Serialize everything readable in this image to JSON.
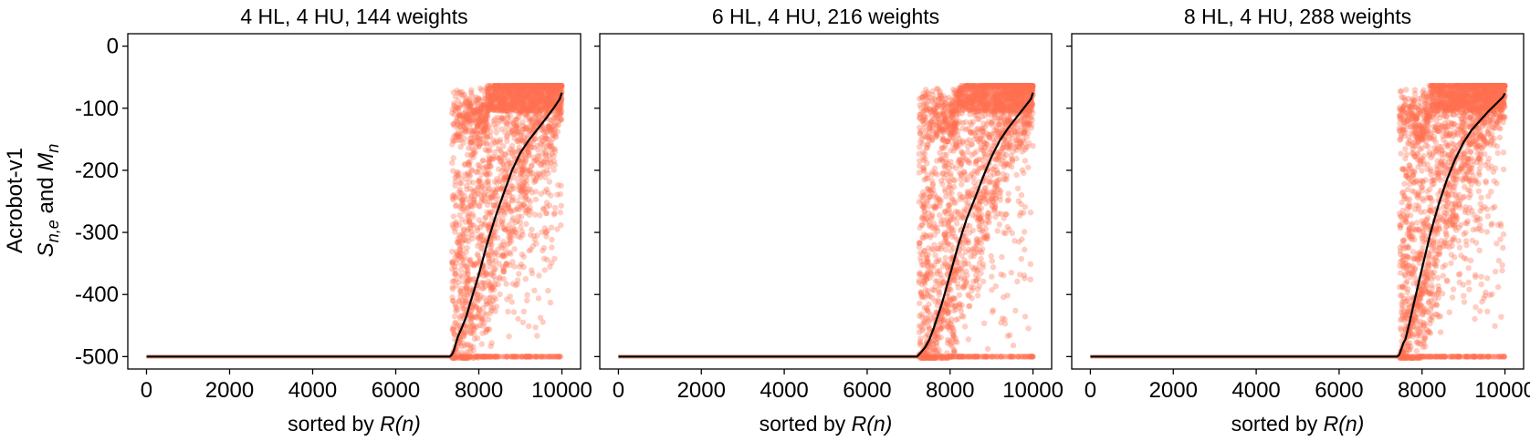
{
  "figure": {
    "row_label": "Acrobot-v1",
    "ylabel_parts": {
      "S": "S",
      "S_sub": "n,e",
      "and": " and ",
      "M": "M",
      "M_sub": "n"
    },
    "xlabel_prefix": "sorted by ",
    "xlabel_var": "R(n)"
  },
  "colors": {
    "scatter": "#ff6f50",
    "mean_line": "#000000",
    "frame": "#000000"
  },
  "chart_data": [
    {
      "type": "scatter",
      "title": "4 HL, 4 HU, 144 weights",
      "xlabel": "sorted by R(n)",
      "ylabel": "Acrobot-v1 S_{n,e} and M_n",
      "xlim": [
        -450,
        10450
      ],
      "ylim": [
        -520,
        20
      ],
      "xticks": [
        0,
        2000,
        4000,
        6000,
        8000,
        10000
      ],
      "yticks": [
        0,
        -100,
        -200,
        -300,
        -400,
        -500
      ],
      "ytick_labels_shown": true,
      "grid": false,
      "series": [
        {
          "type": "scatter",
          "values_summary": "per-episode returns S_{n,e}; -500 for n < 7350, then spread between -500 and -65"
        },
        {
          "type": "line",
          "x": [
            0,
            7300,
            7350,
            7400,
            7450,
            7500,
            7550,
            7600,
            7700,
            7800,
            8000,
            8200,
            8400,
            8600,
            8800,
            9000,
            9200,
            9400,
            9600,
            9800,
            9950,
            10000
          ],
          "y": [
            -500,
            -500,
            -497,
            -490,
            -478,
            -467,
            -460,
            -452,
            -435,
            -412,
            -368,
            -318,
            -275,
            -237,
            -200,
            -172,
            -152,
            -135,
            -118,
            -100,
            -85,
            -75
          ]
        }
      ]
    },
    {
      "type": "scatter",
      "title": "6 HL, 4 HU, 216 weights",
      "xlabel": "sorted by R(n)",
      "xlim": [
        -450,
        10450
      ],
      "ylim": [
        -520,
        20
      ],
      "xticks": [
        0,
        2000,
        4000,
        6000,
        8000,
        10000
      ],
      "yticks": [
        0,
        -100,
        -200,
        -300,
        -400,
        -500
      ],
      "ytick_labels_shown": false,
      "grid": false,
      "series": [
        {
          "type": "scatter",
          "values_summary": "per-episode returns S_{n,e}; -500 for n < 7250, then spread between -500 and -65"
        },
        {
          "type": "line",
          "x": [
            0,
            7200,
            7250,
            7300,
            7400,
            7500,
            7600,
            7800,
            8000,
            8200,
            8400,
            8600,
            8800,
            9000,
            9200,
            9400,
            9600,
            9800,
            9950,
            10000
          ],
          "y": [
            -500,
            -500,
            -497,
            -493,
            -485,
            -473,
            -455,
            -415,
            -368,
            -320,
            -278,
            -245,
            -210,
            -178,
            -152,
            -132,
            -115,
            -98,
            -85,
            -75
          ]
        }
      ]
    },
    {
      "type": "scatter",
      "title": "8 HL, 4 HU, 288 weights",
      "xlabel": "sorted by R(n)",
      "xlim": [
        -450,
        10450
      ],
      "ylim": [
        -520,
        20
      ],
      "xticks": [
        0,
        2000,
        4000,
        6000,
        8000,
        10000
      ],
      "yticks": [
        0,
        -100,
        -200,
        -300,
        -400,
        -500
      ],
      "ytick_labels_shown": false,
      "grid": false,
      "series": [
        {
          "type": "scatter",
          "values_summary": "per-episode returns S_{n,e}; -500 for n < 7450, then spread between -500 and -65"
        },
        {
          "type": "line",
          "x": [
            0,
            7400,
            7450,
            7500,
            7550,
            7600,
            7700,
            7800,
            8000,
            8200,
            8400,
            8600,
            8800,
            9000,
            9200,
            9400,
            9600,
            9800,
            9950,
            10000
          ],
          "y": [
            -500,
            -500,
            -497,
            -488,
            -478,
            -472,
            -445,
            -415,
            -358,
            -302,
            -255,
            -215,
            -182,
            -155,
            -135,
            -120,
            -105,
            -92,
            -82,
            -76
          ]
        }
      ]
    }
  ]
}
